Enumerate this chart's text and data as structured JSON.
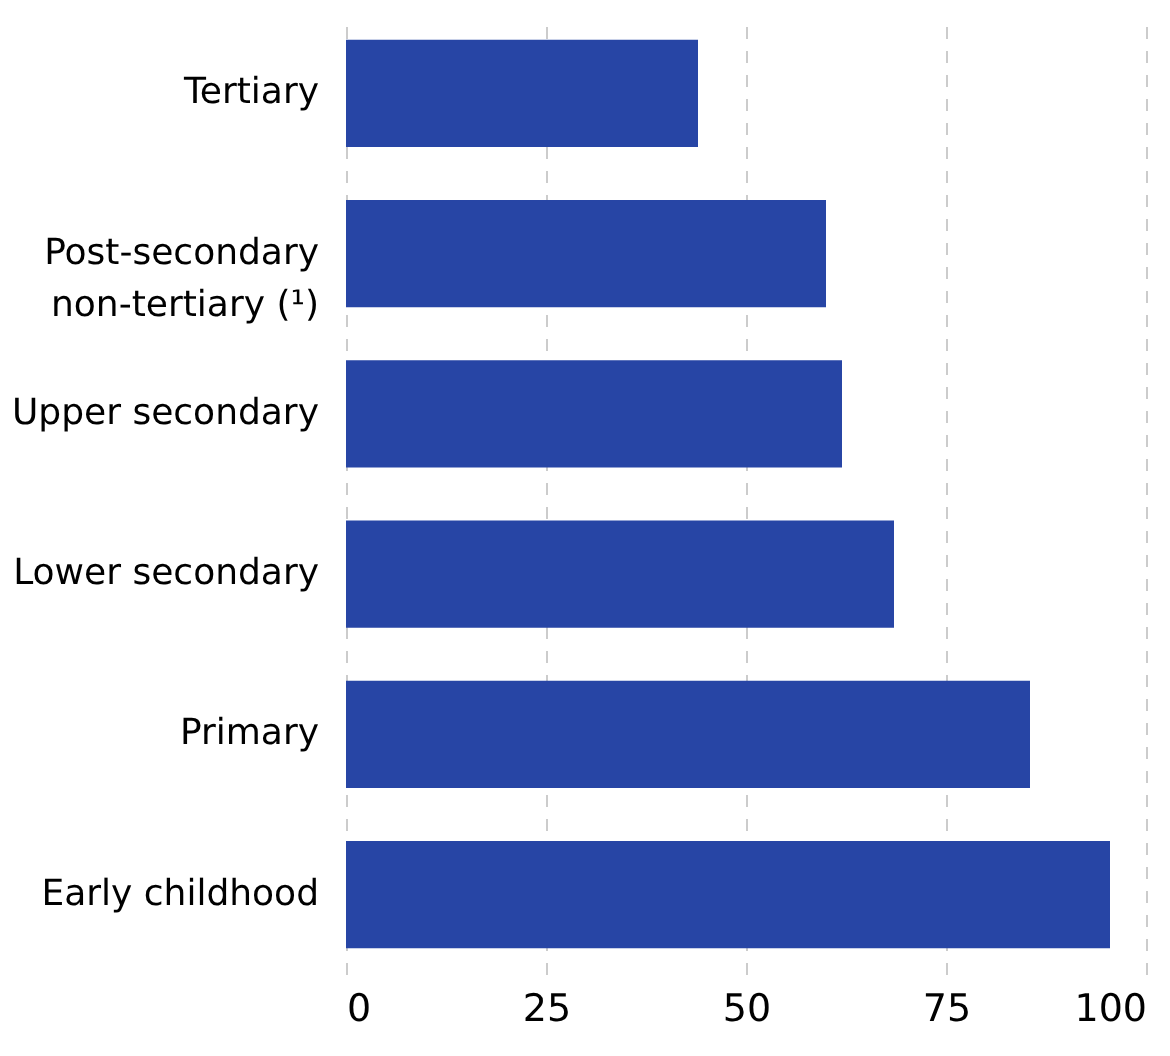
{
  "chart_data": {
    "type": "bar",
    "orientation": "horizontal",
    "categories": [
      "Tertiary",
      "Post-secondary non-tertiary (¹)",
      "Upper secondary",
      "Lower secondary",
      "Primary",
      "Early childhood"
    ],
    "values": [
      44,
      60,
      62,
      68.5,
      85.5,
      95.5
    ],
    "color": "#2745a5",
    "xlim": [
      0,
      100
    ],
    "xticks": [
      0,
      25,
      50,
      75,
      100
    ],
    "grid": "x"
  }
}
